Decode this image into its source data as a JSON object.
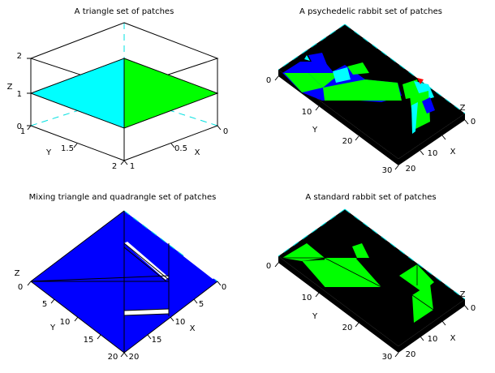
{
  "figure": {
    "background": "#ffffff"
  },
  "chart_data": [
    {
      "type": "surface",
      "title": "A triangle set of patches",
      "xlabel": "X",
      "ylabel": "Y",
      "zlabel": "Z",
      "xticks": [
        "0",
        "0.5",
        "1"
      ],
      "yticks": [
        "1",
        "1.5",
        "2"
      ],
      "zticks": [
        "0",
        "1",
        "2"
      ],
      "patches": [
        {
          "name": "cyan-triangle",
          "color": "#00ffff"
        },
        {
          "name": "green-triangle",
          "color": "#00ff00"
        }
      ]
    },
    {
      "type": "surface",
      "title": "A psychedelic rabbit set of patches",
      "ylabel": "Y",
      "zlabel": "Z",
      "xlabel": "X",
      "yticks": [
        "0",
        "10",
        "20",
        "30"
      ],
      "xticks": [
        "0",
        "10",
        "20"
      ],
      "colors": [
        "#000000",
        "#0000ff",
        "#00ff00",
        "#00ffff",
        "#ff0000"
      ]
    },
    {
      "type": "surface",
      "title": "Mixing triangle and quadrangle set of patches",
      "zlabel": "Z",
      "ylabel": "Y",
      "xlabel": "X",
      "left_ticks": [
        "0",
        "5",
        "10",
        "15",
        "20"
      ],
      "right_ticks": [
        "0",
        "5",
        "10",
        "15",
        "20"
      ],
      "colors": [
        "#0000ff",
        "#ffffff"
      ]
    },
    {
      "type": "surface",
      "title": "A standard rabbit set of patches",
      "ylabel": "Y",
      "zlabel": "Z",
      "xlabel": "X",
      "yticks": [
        "0",
        "10",
        "20",
        "30"
      ],
      "xticks": [
        "0",
        "10",
        "20"
      ],
      "colors": [
        "#000000",
        "#00ff00"
      ]
    }
  ]
}
